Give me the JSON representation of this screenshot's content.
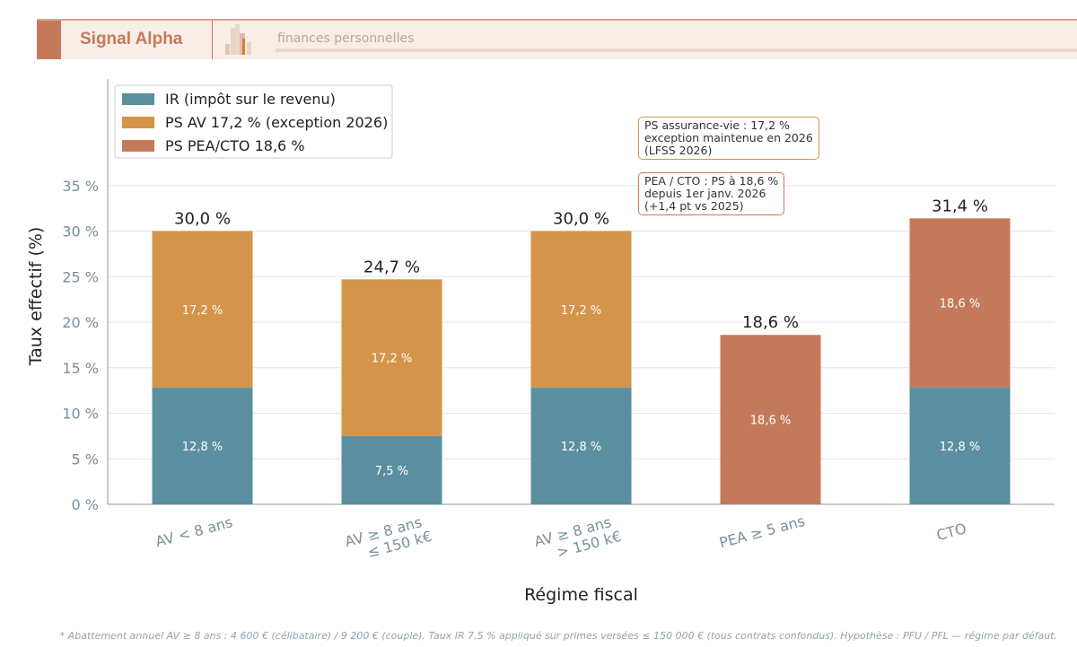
{
  "header": {
    "brand": "Signal Alpha",
    "subtitle": "finances personnelles"
  },
  "chart_data": {
    "type": "bar",
    "stacked": true,
    "xlabel": "Régime fiscal",
    "ylabel": "Taux effectif (%)",
    "categories": [
      "AV < 8 ans",
      "AV ≥ 8 ans\n≤ 150 k€",
      "AV ≥ 8 ans\n> 150 k€",
      "PEA ≥ 5 ans",
      "CTO"
    ],
    "series": [
      {
        "name": "IR (impôt sur le revenu)",
        "color": "#5b8fa0",
        "values": [
          12.8,
          7.5,
          12.8,
          0,
          12.8
        ],
        "labels": [
          "12,8 %",
          "7,5 %",
          "12,8 %",
          "",
          "12,8 %"
        ]
      },
      {
        "name": "PS AV 17,2 % (exception 2026)",
        "color": "#d4944a",
        "values": [
          17.2,
          17.2,
          17.2,
          0,
          0
        ],
        "labels": [
          "17,2 %",
          "17,2 %",
          "17,2 %",
          "",
          ""
        ]
      },
      {
        "name": "PS PEA/CTO 18,6 %",
        "color": "#c47a5a",
        "values": [
          0,
          0,
          0,
          18.6,
          18.6
        ],
        "labels": [
          "",
          "",
          "",
          "18,6 %",
          "18,6 %"
        ]
      }
    ],
    "totals": [
      "30,0 %",
      "24,7 %",
      "30,0 %",
      "18,6 %",
      "31,4 %"
    ],
    "yticks": [
      0,
      5,
      10,
      15,
      20,
      25,
      30,
      35
    ],
    "ytick_labels": [
      "0 %",
      "5 %",
      "10 %",
      "15 %",
      "20 %",
      "25 %",
      "30 %",
      "35 %"
    ],
    "ylim": [
      0,
      46.7
    ],
    "grid": "horizontal",
    "legend": "top-left",
    "annotations": [
      {
        "text": "PS assurance-vie : 17,2 %\nexception maintenue en 2026\n(LFSS 2026)",
        "color": "#d4944a"
      },
      {
        "text": "PEA / CTO : PS à 18,6 %\ndepuis 1er janv. 2026\n(+1,4 pt vs 2025)",
        "color": "#c47a5a"
      }
    ]
  },
  "footnote": "* Abattement annuel AV ≥ 8 ans : 4 600 € (célibataire) / 9 200 € (couple). Taux IR 7,5 % appliqué sur primes versées ≤ 150 000 € (tous contrats confondus). Hypothèse : PFU / PFL — régime par défaut."
}
